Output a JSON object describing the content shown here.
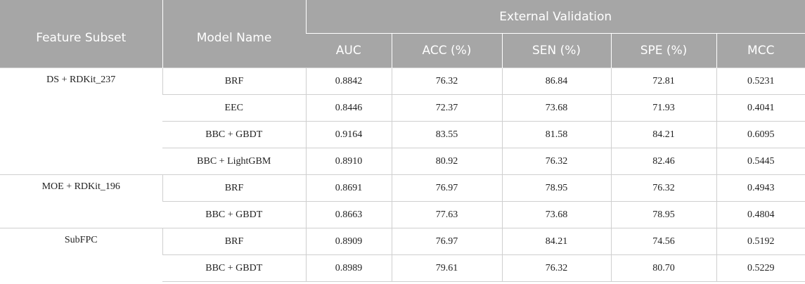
{
  "header": {
    "feature_subset": "Feature Subset",
    "model_name": "Model Name",
    "external_validation": "External Validation",
    "metrics": [
      "AUC",
      "ACC (%)",
      "SEN (%)",
      "SPE (%)",
      "MCC"
    ]
  },
  "groups": [
    {
      "feature_subset": "DS + RDKit_237",
      "rows": [
        {
          "model": "BRF",
          "auc": "0.8842",
          "acc": "76.32",
          "sen": "86.84",
          "spe": "72.81",
          "mcc": "0.5231"
        },
        {
          "model": "EEC",
          "auc": "0.8446",
          "acc": "72.37",
          "sen": "73.68",
          "spe": "71.93",
          "mcc": "0.4041"
        },
        {
          "model": "BBC + GBDT",
          "auc": "0.9164",
          "acc": "83.55",
          "sen": "81.58",
          "spe": "84.21",
          "mcc": "0.6095"
        },
        {
          "model": "BBC + LightGBM",
          "auc": "0.8910",
          "acc": "80.92",
          "sen": "76.32",
          "spe": "82.46",
          "mcc": "0.5445"
        }
      ]
    },
    {
      "feature_subset": "MOE + RDKit_196",
      "rows": [
        {
          "model": "BRF",
          "auc": "0.8691",
          "acc": "76.97",
          "sen": "78.95",
          "spe": "76.32",
          "mcc": "0.4943"
        },
        {
          "model": "BBC + GBDT",
          "auc": "0.8663",
          "acc": "77.63",
          "sen": "73.68",
          "spe": "78.95",
          "mcc": "0.4804"
        }
      ]
    },
    {
      "feature_subset": "SubFPC",
      "rows": [
        {
          "model": "BRF",
          "auc": "0.8909",
          "acc": "76.97",
          "sen": "84.21",
          "spe": "74.56",
          "mcc": "0.5192"
        },
        {
          "model": "BBC + GBDT",
          "auc": "0.8989",
          "acc": "79.61",
          "sen": "76.32",
          "spe": "80.70",
          "mcc": "0.5229"
        }
      ]
    }
  ]
}
